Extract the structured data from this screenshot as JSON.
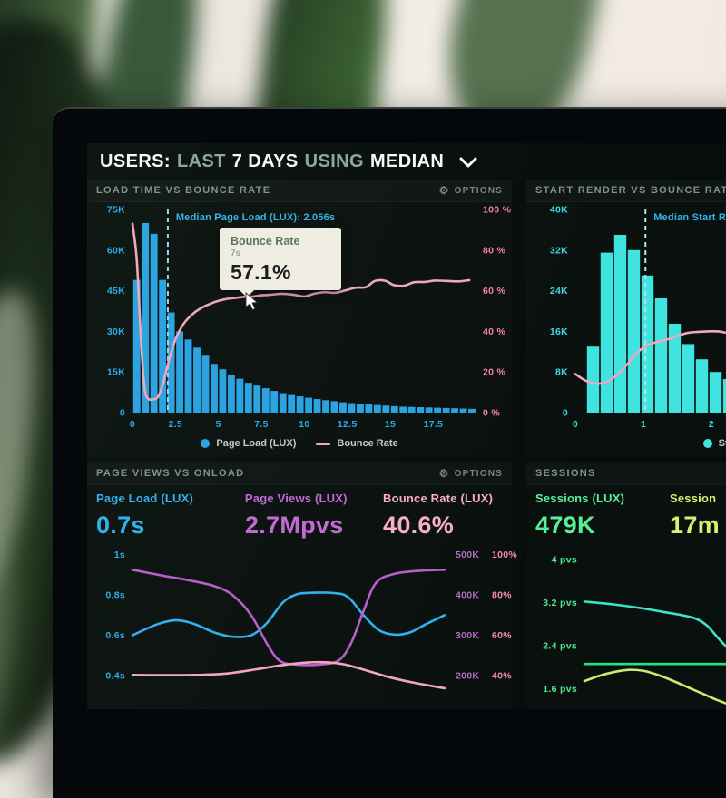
{
  "header": {
    "prefix": "USERS:",
    "range_label": "LAST",
    "range_value": "7 DAYS",
    "using_label": "USING",
    "metric_value": "MEDIAN"
  },
  "panels": {
    "load_time": {
      "title": "LOAD TIME VS BOUNCE RATE",
      "options_label": "OPTIONS"
    },
    "start_render": {
      "title": "START RENDER VS BOUNCE RATE"
    },
    "page_views": {
      "title": "PAGE VIEWS VS ONLOAD",
      "options_label": "OPTIONS",
      "metrics": [
        {
          "label": "Page Load (LUX)",
          "value": "0.7s",
          "color": "#2fb1f0"
        },
        {
          "label": "Page Views (LUX)",
          "value": "2.7Mpvs",
          "color": "#c469d6"
        },
        {
          "label": "Bounce Rate (LUX)",
          "value": "40.6%",
          "color": "#f7afc6"
        }
      ]
    },
    "sessions": {
      "title": "SESSIONS",
      "metrics": [
        {
          "label": "Sessions (LUX)",
          "value": "479K",
          "color": "#59ef97"
        },
        {
          "label": "Session",
          "value": "17m",
          "color": "#d6f06f"
        }
      ]
    }
  },
  "chart_data": [
    {
      "id": "load-time",
      "type": "bar",
      "title": "LOAD TIME VS BOUNCE RATE",
      "x": {
        "min": 0,
        "max": 19.75,
        "unit": "seconds",
        "color": "#2aa9e9",
        "tick_values": [
          0,
          2.5,
          5,
          7.5,
          10,
          12.5,
          15,
          17.5
        ],
        "tick_labels": [
          "0",
          "2.5",
          "5",
          "7.5",
          "10",
          "12.5",
          "15",
          "17.5"
        ]
      },
      "y_left": {
        "min": 0,
        "max": 75000,
        "color": "#2aa9e9",
        "series": "Page Load (LUX)",
        "ticks": [
          {
            "v": 0,
            "label": "0"
          },
          {
            "v": 15000,
            "label": "15K"
          },
          {
            "v": 30000,
            "label": "30K"
          },
          {
            "v": 45000,
            "label": "45K"
          },
          {
            "v": 60000,
            "label": "60K"
          },
          {
            "v": 75000,
            "label": "75K"
          }
        ]
      },
      "y_right": {
        "min": 0,
        "max": 100,
        "color": "#f4849f",
        "series": "Bounce Rate",
        "ticks": [
          {
            "v": 0,
            "label": "0 %"
          },
          {
            "v": 20,
            "label": "20 %"
          },
          {
            "v": 40,
            "label": "40 %"
          },
          {
            "v": 60,
            "label": "60 %"
          },
          {
            "v": 80,
            "label": "80 %"
          },
          {
            "v": 100,
            "label": "100 %"
          }
        ]
      },
      "bars": {
        "name": "Page Load (LUX)",
        "color": "#29a2e3",
        "x_start": 0,
        "x_step": 0.5,
        "values": [
          49000,
          70000,
          66000,
          49000,
          37000,
          30000,
          27000,
          24000,
          21000,
          18000,
          16000,
          14000,
          12500,
          11000,
          10000,
          9000,
          8000,
          7200,
          6500,
          6000,
          5500,
          5000,
          4600,
          4200,
          3800,
          3500,
          3200,
          3000,
          2800,
          2600,
          2400,
          2200,
          2100,
          2000,
          1900,
          1800,
          1700,
          1600,
          1500,
          1400
        ]
      },
      "line": {
        "name": "Bounce Rate",
        "color": "#f3a6bd",
        "axis": "right",
        "points": [
          [
            0,
            93
          ],
          [
            0.25,
            75
          ],
          [
            0.5,
            35
          ],
          [
            0.7,
            12
          ],
          [
            0.9,
            7
          ],
          [
            1.2,
            6.5
          ],
          [
            1.5,
            8
          ],
          [
            1.8,
            15
          ],
          [
            2.1,
            25
          ],
          [
            2.5,
            36
          ],
          [
            3,
            44
          ],
          [
            3.5,
            48.5
          ],
          [
            4,
            51.5
          ],
          [
            4.5,
            53.5
          ],
          [
            5,
            55
          ],
          [
            5.5,
            56
          ],
          [
            6,
            56.5
          ],
          [
            6.5,
            57
          ],
          [
            7,
            57.1
          ],
          [
            7.5,
            57.8
          ],
          [
            8,
            58
          ],
          [
            8.7,
            58.5
          ],
          [
            9.4,
            58
          ],
          [
            10,
            57.2
          ],
          [
            10.6,
            58.6
          ],
          [
            11.2,
            59.3
          ],
          [
            11.8,
            59
          ],
          [
            12.4,
            60.2
          ],
          [
            13,
            61.5
          ],
          [
            13.6,
            61.8
          ],
          [
            14.1,
            64.8
          ],
          [
            14.7,
            64.9
          ],
          [
            15.2,
            62.8
          ],
          [
            15.8,
            62.5
          ],
          [
            16.4,
            64.2
          ],
          [
            17,
            64.3
          ],
          [
            17.6,
            65
          ],
          [
            18.3,
            64.8
          ],
          [
            19,
            64.6
          ],
          [
            19.6,
            65.2
          ]
        ]
      },
      "median": {
        "x": 2.056,
        "label": "Median Page Load (LUX): 2.056s",
        "line_color": "#9fd8ec",
        "label_color": "#35b5ea"
      },
      "tooltip": {
        "title": "Bounce Rate",
        "subtitle": "7s",
        "value": "57.1%",
        "x": 7,
        "y": 57.1
      },
      "legend": [
        {
          "label": "Page Load (LUX)",
          "color": "#29a2e3",
          "marker": "dot"
        },
        {
          "label": "Bounce Rate",
          "color": "#f3a6bd",
          "marker": "line"
        }
      ]
    },
    {
      "id": "start-render",
      "type": "bar",
      "title": "START RENDER VS BOUNCE RATE",
      "x": {
        "min": 0,
        "max": 2.6,
        "unit": "seconds",
        "color": "#3fd9e0",
        "tick_values": [
          0,
          1,
          2
        ],
        "tick_labels": [
          "0",
          "1",
          "2"
        ]
      },
      "y_left": {
        "min": 0,
        "max": 40000,
        "color": "#3fd9e0",
        "series": "Start Render",
        "ticks": [
          {
            "v": 0,
            "label": "0"
          },
          {
            "v": 8000,
            "label": "8K"
          },
          {
            "v": 16000,
            "label": "16K"
          },
          {
            "v": 24000,
            "label": "24K"
          },
          {
            "v": 32000,
            "label": "32K"
          },
          {
            "v": 40000,
            "label": "40K"
          }
        ]
      },
      "bars": {
        "name": "Start Render",
        "color": "#3fe3df",
        "x_start": 0.16,
        "x_step": 0.2,
        "values": [
          13000,
          31500,
          35000,
          32000,
          27000,
          22500,
          17500,
          13500,
          10500,
          8000,
          6600,
          5800
        ]
      },
      "line": {
        "name": "Bounce Rate",
        "color": "#f3a6bd",
        "axis": "left",
        "points": [
          [
            0,
            7600
          ],
          [
            0.15,
            6300
          ],
          [
            0.3,
            5700
          ],
          [
            0.45,
            6000
          ],
          [
            0.6,
            7300
          ],
          [
            0.75,
            9300
          ],
          [
            0.9,
            11700
          ],
          [
            1.05,
            13200
          ],
          [
            1.2,
            13900
          ],
          [
            1.35,
            14400
          ],
          [
            1.5,
            15100
          ],
          [
            1.65,
            15700
          ],
          [
            1.8,
            15900
          ],
          [
            1.95,
            16000
          ],
          [
            2.1,
            16000
          ],
          [
            2.25,
            15700
          ],
          [
            2.4,
            15900
          ],
          [
            2.55,
            16200
          ]
        ]
      },
      "median": {
        "x": 1.03,
        "label": "Median Start Rende",
        "line_color": "#b9e3ea",
        "label_color": "#35b5ea"
      },
      "legend": [
        {
          "label": "Start Rende",
          "color": "#3fe3df",
          "marker": "dot"
        }
      ]
    },
    {
      "id": "page-views",
      "type": "line",
      "title": "PAGE VIEWS VS ONLOAD",
      "x": {
        "min": 0,
        "max": 10
      },
      "y_left": {
        "min": 0.31,
        "max": 1.03,
        "color": "#2fa9e9",
        "ticks": [
          {
            "v": 1,
            "label": "1s"
          },
          {
            "v": 0.8,
            "label": "0.8s"
          },
          {
            "v": 0.6,
            "label": "0.6s"
          },
          {
            "v": 0.4,
            "label": "0.4s"
          }
        ]
      },
      "y_right_cols": [
        {
          "color": "#b06cc4",
          "labels": [
            "500K",
            "400K",
            "300K",
            "200K"
          ]
        },
        {
          "color": "#f48ba6",
          "labels": [
            "100%",
            "80%",
            "60%",
            "40%"
          ]
        }
      ],
      "series": [
        {
          "id": "page-load",
          "color": "#2fb1f0",
          "points": [
            [
              0,
              0.6
            ],
            [
              0.8,
              0.655
            ],
            [
              1.4,
              0.675
            ],
            [
              2,
              0.655
            ],
            [
              2.6,
              0.615
            ],
            [
              3.2,
              0.593
            ],
            [
              3.8,
              0.6
            ],
            [
              4.3,
              0.66
            ],
            [
              4.8,
              0.76
            ],
            [
              5.2,
              0.8
            ],
            [
              5.6,
              0.81
            ],
            [
              6.4,
              0.81
            ],
            [
              6.9,
              0.79
            ],
            [
              7.4,
              0.7
            ],
            [
              7.9,
              0.625
            ],
            [
              8.4,
              0.603
            ],
            [
              8.9,
              0.615
            ],
            [
              9.4,
              0.655
            ],
            [
              10,
              0.7
            ]
          ]
        },
        {
          "id": "page-views",
          "color": "#b75fcb",
          "points": [
            [
              0,
              0.925
            ],
            [
              1,
              0.895
            ],
            [
              1.8,
              0.873
            ],
            [
              2.6,
              0.845
            ],
            [
              3.2,
              0.8
            ],
            [
              3.8,
              0.7
            ],
            [
              4.3,
              0.56
            ],
            [
              4.7,
              0.475
            ],
            [
              5.2,
              0.455
            ],
            [
              6,
              0.455
            ],
            [
              6.6,
              0.475
            ],
            [
              7,
              0.56
            ],
            [
              7.4,
              0.72
            ],
            [
              7.8,
              0.86
            ],
            [
              8.4,
              0.905
            ],
            [
              9.2,
              0.92
            ],
            [
              10,
              0.925
            ]
          ]
        },
        {
          "id": "bounce-rate",
          "color": "#f3a6bd",
          "points": [
            [
              0,
              0.403
            ],
            [
              1,
              0.402
            ],
            [
              2,
              0.403
            ],
            [
              3,
              0.41
            ],
            [
              4,
              0.432
            ],
            [
              4.8,
              0.452
            ],
            [
              5.6,
              0.465
            ],
            [
              6.2,
              0.466
            ],
            [
              6.8,
              0.455
            ],
            [
              7.5,
              0.425
            ],
            [
              8.2,
              0.393
            ],
            [
              9,
              0.365
            ],
            [
              10,
              0.337
            ]
          ]
        }
      ]
    },
    {
      "id": "sessions",
      "type": "line",
      "title": "SESSIONS",
      "x": {
        "min": 0,
        "max": 10
      },
      "y_left": {
        "min": 1.27,
        "max": 4.07,
        "color": "#4ee88c",
        "ticks": [
          {
            "v": 4,
            "label": "4 pvs"
          },
          {
            "v": 3.2,
            "label": "3.2 pvs"
          },
          {
            "v": 2.4,
            "label": "2.4 pvs"
          },
          {
            "v": 1.6,
            "label": "1.6 pvs"
          }
        ]
      },
      "series": [
        {
          "id": "teal-line",
          "color": "#3ae6c4",
          "points": [
            [
              0,
              3.22
            ],
            [
              1.5,
              3.17
            ],
            [
              3,
              3.1
            ],
            [
              4.2,
              3.03
            ],
            [
              5.2,
              2.97
            ],
            [
              6,
              2.9
            ],
            [
              6.6,
              2.77
            ],
            [
              7.3,
              2.5
            ],
            [
              8.2,
              2.2
            ],
            [
              9,
              2.1
            ],
            [
              10,
              2.07
            ]
          ]
        },
        {
          "id": "green-line",
          "color": "#22e381",
          "points": [
            [
              0,
              2.06
            ],
            [
              5,
              2.06
            ],
            [
              10,
              2.06
            ]
          ]
        },
        {
          "id": "yellow-line",
          "color": "#cdeb6e",
          "points": [
            [
              0,
              1.74
            ],
            [
              0.8,
              1.84
            ],
            [
              1.6,
              1.91
            ],
            [
              2.4,
              1.95
            ],
            [
              3.2,
              1.93
            ],
            [
              4,
              1.85
            ],
            [
              4.8,
              1.74
            ],
            [
              5.6,
              1.62
            ],
            [
              6.4,
              1.5
            ],
            [
              7.2,
              1.38
            ],
            [
              8,
              1.28
            ],
            [
              8.6,
              1.22
            ]
          ]
        }
      ]
    }
  ]
}
